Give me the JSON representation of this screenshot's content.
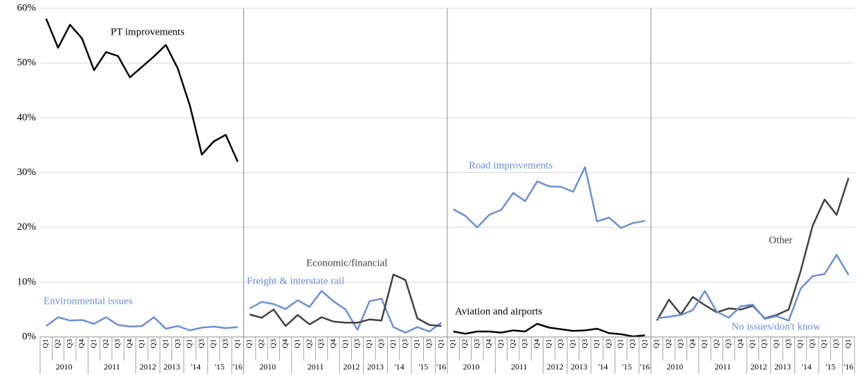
{
  "chart_data": {
    "type": "line",
    "ylim": [
      0,
      60
    ],
    "yticks": [
      {
        "value": 0,
        "label": "0%"
      },
      {
        "value": 10,
        "label": "10%"
      },
      {
        "value": 20,
        "label": "20%"
      },
      {
        "value": 30,
        "label": "30%"
      },
      {
        "value": 40,
        "label": "40%"
      },
      {
        "value": 50,
        "label": "50%"
      },
      {
        "value": 60,
        "label": "60%"
      }
    ],
    "grid": true,
    "panels": [
      {
        "groups": [
          {
            "label": "2010",
            "categories": [
              "Q1",
              "Q2",
              "Q3",
              "Q4"
            ]
          },
          {
            "label": "2011",
            "categories": [
              "Q1",
              "Q2",
              "Q3",
              "Q4"
            ]
          },
          {
            "label": "2012",
            "categories": [
              "Q1",
              "Q3"
            ]
          },
          {
            "label": "2013",
            "categories": [
              "Q1",
              "Q3"
            ]
          },
          {
            "label": "'14",
            "categories": [
              "Q1",
              "Q3"
            ]
          },
          {
            "label": "'15",
            "categories": [
              "Q1",
              "Q3"
            ]
          },
          {
            "label": "'16",
            "categories": [
              "Q1"
            ]
          }
        ],
        "series": [
          {
            "name": "PT improvements",
            "color": "#000000",
            "values": [
              58.1,
              52.8,
              57,
              54.5,
              48.7,
              52,
              51.3,
              47.4,
              49.3,
              51.2,
              53.3,
              49,
              42.3,
              33.3,
              35.7,
              36.9,
              32
            ]
          },
          {
            "name": "Environmental issues",
            "color": "#6b8fd6",
            "values": [
              2,
              3.6,
              3,
              3.1,
              2.4,
              3.6,
              2.2,
              1.9,
              2,
              3.6,
              1.5,
              2,
              1.2,
              1.7,
              1.9,
              1.6,
              1.8
            ]
          }
        ]
      },
      {
        "groups": [
          {
            "label": "2010",
            "categories": [
              "Q1",
              "Q2",
              "Q3",
              "Q4"
            ]
          },
          {
            "label": "2011",
            "categories": [
              "Q1",
              "Q2",
              "Q3",
              "Q4"
            ]
          },
          {
            "label": "2012",
            "categories": [
              "Q1",
              "Q3"
            ]
          },
          {
            "label": "2013",
            "categories": [
              "Q1",
              "Q3"
            ]
          },
          {
            "label": "'14",
            "categories": [
              "Q1",
              "Q3"
            ]
          },
          {
            "label": "'15",
            "categories": [
              "Q1",
              "Q3"
            ]
          },
          {
            "label": "'16",
            "categories": [
              "Q1"
            ]
          }
        ],
        "series": [
          {
            "name": "Freight & interstate rail",
            "color": "#6b8fd6",
            "values": [
              5.2,
              6.4,
              6,
              5.1,
              6.7,
              5.5,
              8.4,
              6.5,
              5,
              1.3,
              6.5,
              7,
              1.8,
              0.8,
              1.8,
              1,
              2.6
            ]
          },
          {
            "name": "Economic/financial",
            "color": "#404040",
            "values": [
              4.1,
              3.5,
              5,
              2,
              4,
              2.3,
              3.6,
              2.8,
              2.6,
              2.6,
              3.2,
              3,
              11.4,
              10.4,
              3.4,
              2.2,
              2
            ]
          }
        ]
      },
      {
        "groups": [
          {
            "label": "2010",
            "categories": [
              "Q1",
              "Q2",
              "Q3",
              "Q4"
            ]
          },
          {
            "label": "2011",
            "categories": [
              "Q1",
              "Q2",
              "Q3",
              "Q4"
            ]
          },
          {
            "label": "2012",
            "categories": [
              "Q1",
              "Q3"
            ]
          },
          {
            "label": "2013",
            "categories": [
              "Q1",
              "Q3"
            ]
          },
          {
            "label": "'14",
            "categories": [
              "Q1",
              "Q3"
            ]
          },
          {
            "label": "'15",
            "categories": [
              "Q1",
              "Q3"
            ]
          },
          {
            "label": "'16",
            "categories": [
              "Q1"
            ]
          }
        ],
        "series": [
          {
            "name": "Road improvements",
            "color": "#6b8fd6",
            "values": [
              23.3,
              22.1,
              20,
              22.3,
              23.2,
              26.3,
              24.8,
              28.4,
              27.5,
              27.4,
              26.5,
              31,
              21.1,
              21.8,
              19.9,
              20.8,
              21.2
            ]
          },
          {
            "name": "Aviation and airports",
            "color": "#000000",
            "values": [
              1,
              0.6,
              1,
              1,
              0.8,
              1.2,
              1,
              2.4,
              1.7,
              1.4,
              1.1,
              1.2,
              1.5,
              0.7,
              0.5,
              0.1,
              0.3
            ]
          }
        ]
      },
      {
        "groups": [
          {
            "label": "2010",
            "categories": [
              "Q1",
              "Q2",
              "Q3",
              "Q4"
            ]
          },
          {
            "label": "2011",
            "categories": [
              "Q1",
              "Q2",
              "Q3",
              "Q4"
            ]
          },
          {
            "label": "2012",
            "categories": [
              "Q1",
              "Q3"
            ]
          },
          {
            "label": "2013",
            "categories": [
              "Q1",
              "Q3"
            ]
          },
          {
            "label": "'14",
            "categories": [
              "Q1",
              "Q3"
            ]
          },
          {
            "label": "'15",
            "categories": [
              "Q1",
              "Q3"
            ]
          },
          {
            "label": "'16",
            "categories": [
              "Q1"
            ]
          }
        ],
        "series": [
          {
            "name": "Other",
            "color": "#404040",
            "values": [
              3,
              6.8,
              4.1,
              7.3,
              5.8,
              4.5,
              5.2,
              5,
              5.7,
              3.4,
              4,
              5,
              12,
              20.3,
              25.1,
              22.3,
              29
            ]
          },
          {
            "name": "No issues/don't know",
            "color": "#6b8fd6",
            "values": [
              3.4,
              3.7,
              4,
              4.9,
              8.4,
              4.6,
              3.5,
              5.6,
              5.9,
              3.3,
              3.8,
              3,
              8.8,
              11.1,
              11.5,
              15,
              11.3
            ]
          }
        ]
      }
    ]
  }
}
